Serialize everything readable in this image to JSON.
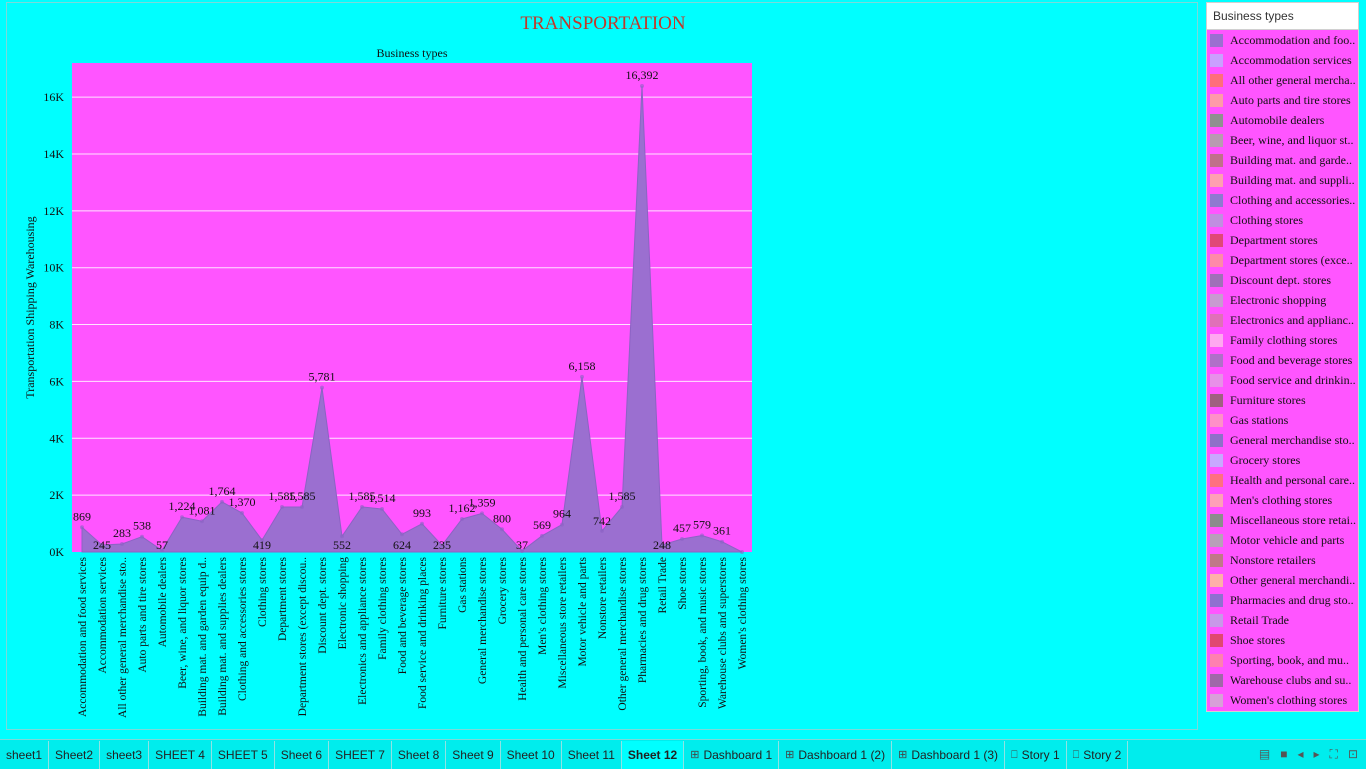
{
  "chart_data": {
    "type": "area",
    "title": "TRANSPORTATION",
    "subtitle": "Business types",
    "ylabel": "Transportation Shipping Warehousing",
    "ylim": [
      0,
      17200
    ],
    "yticks": [
      0,
      2000,
      4000,
      6000,
      8000,
      10000,
      12000,
      14000,
      16000
    ],
    "ytick_labels": [
      "0K",
      "2K",
      "4K",
      "6K",
      "8K",
      "10K",
      "12K",
      "14K",
      "16K"
    ],
    "grid": true,
    "categories": [
      "Accommodation and food services",
      "Accommodation services",
      "All other general merchandise sto..",
      "Auto parts and tire stores",
      "Automobile dealers",
      "Beer, wine, and liquor stores",
      "Building mat. and garden equip d..",
      "Building mat. and supplies dealers",
      "Clothing and accessories stores",
      "Clothing stores",
      "Department stores",
      "Department stores (except discou..",
      "Discount dept. stores",
      "Electronic shopping",
      "Electronics and appliance stores",
      "Family clothing stores",
      "Food and beverage stores",
      "Food service and drinking places",
      "Furniture stores",
      "Gas stations",
      "General merchandise stores",
      "Grocery stores",
      "Health and personal care stores",
      "Men's clothing stores",
      "Miscellaneous store retailers",
      "Motor vehicle and parts",
      "Nonstore retailers",
      "Other general merchandise stores",
      "Pharmacies and drug stores",
      "Retail Trade",
      "Shoe stores",
      "Sporting, book, and music stores",
      "Warehouse clubs and superstores",
      "Women's clothing stores"
    ],
    "values": [
      869,
      245,
      283,
      538,
      57,
      1224,
      1081,
      1764,
      1370,
      419,
      1585,
      1585,
      5781,
      552,
      1585,
      1514,
      624,
      993,
      235,
      1162,
      1359,
      800,
      37,
      569,
      964,
      6158,
      742,
      1585,
      16392,
      248,
      457,
      579,
      361,
      0
    ],
    "data_labels": [
      "869",
      "245",
      "283",
      "538",
      "57",
      "1,224",
      "1,081",
      "1,764",
      "1,370",
      "419",
      "1,585",
      "1,585",
      "5,781",
      "552",
      "1,585",
      "1,514",
      "624",
      "993",
      "235",
      "1,162",
      "1,359",
      "800",
      "37",
      "569",
      "964",
      "6,158",
      "742",
      "1,585",
      "16,392",
      "248",
      "457",
      "579",
      "361",
      ""
    ],
    "colors": {
      "background": "#00ffff",
      "plot_background": "#ff55ff",
      "area_fill": "#9b6fd0",
      "area_stroke": "#8c63c4",
      "title": "#c0392b"
    }
  },
  "legend": {
    "title": "Business types",
    "items": [
      {
        "label": "Accommodation and foo..",
        "color": "#9b6fd0"
      },
      {
        "label": "Accommodation services",
        "color": "#c9a0ff"
      },
      {
        "label": "All other general mercha..",
        "color": "#ff6e7a"
      },
      {
        "label": "Auto parts and tire stores",
        "color": "#ff9aa8"
      },
      {
        "label": "Automobile dealers",
        "color": "#909090"
      },
      {
        "label": "Beer, wine, and liquor st..",
        "color": "#b89ab0"
      },
      {
        "label": "Building mat. and garde..",
        "color": "#c0708a"
      },
      {
        "label": "Building mat. and suppli..",
        "color": "#ffa0b0"
      },
      {
        "label": "Clothing and accessories..",
        "color": "#8e7ad0"
      },
      {
        "label": "Clothing stores",
        "color": "#c08ee0"
      },
      {
        "label": "Department stores",
        "color": "#e04878"
      },
      {
        "label": "Department stores (exce..",
        "color": "#ff8aa8"
      },
      {
        "label": "Discount dept. stores",
        "color": "#a070b8"
      },
      {
        "label": "Electronic shopping",
        "color": "#c89ad0"
      },
      {
        "label": "Electronics and applianc..",
        "color": "#e070b8"
      },
      {
        "label": "Family clothing stores",
        "color": "#ffa8f0"
      },
      {
        "label": "Food and beverage stores",
        "color": "#b070c8"
      },
      {
        "label": "Food service and drinkin..",
        "color": "#e890e8"
      },
      {
        "label": "Furniture stores",
        "color": "#a06080"
      },
      {
        "label": "Gas stations",
        "color": "#ff90c8"
      },
      {
        "label": "General merchandise sto..",
        "color": "#8e70c8"
      },
      {
        "label": "Grocery stores",
        "color": "#c8a8ff"
      },
      {
        "label": "Health and personal care..",
        "color": "#ff7080"
      },
      {
        "label": "Men's clothing stores",
        "color": "#ffa0b8"
      },
      {
        "label": "Miscellaneous store retai..",
        "color": "#8c8c8c"
      },
      {
        "label": "Motor vehicle and parts",
        "color": "#b8a0b8"
      },
      {
        "label": "Nonstore retailers",
        "color": "#c07888"
      },
      {
        "label": "Other general merchandi..",
        "color": "#ffb0a8"
      },
      {
        "label": "Pharmacies and drug sto..",
        "color": "#9070d0"
      },
      {
        "label": "Retail Trade",
        "color": "#c898e8"
      },
      {
        "label": "Shoe stores",
        "color": "#e04870"
      },
      {
        "label": "Sporting, book, and  mu..",
        "color": "#ff80b0"
      },
      {
        "label": "Warehouse clubs and su..",
        "color": "#a068a8"
      },
      {
        "label": "Women's clothing stores",
        "color": "#d8a0d8"
      }
    ]
  },
  "tabs": [
    {
      "label": "sheet1",
      "icon": "",
      "active": false
    },
    {
      "label": "Sheet2",
      "icon": "",
      "active": false
    },
    {
      "label": "sheet3",
      "icon": "",
      "active": false
    },
    {
      "label": "SHEET 4",
      "icon": "",
      "active": false
    },
    {
      "label": "SHEET 5",
      "icon": "",
      "active": false
    },
    {
      "label": "Sheet 6",
      "icon": "",
      "active": false
    },
    {
      "label": "SHEET 7",
      "icon": "",
      "active": false
    },
    {
      "label": "Sheet 8",
      "icon": "",
      "active": false
    },
    {
      "label": "Sheet 9",
      "icon": "",
      "active": false
    },
    {
      "label": "Sheet 10",
      "icon": "",
      "active": false
    },
    {
      "label": "Sheet 11",
      "icon": "",
      "active": false
    },
    {
      "label": "Sheet 12",
      "icon": "",
      "active": true
    },
    {
      "label": "Dashboard 1",
      "icon": "dashboard-icon",
      "active": false
    },
    {
      "label": "Dashboard 1 (2)",
      "icon": "dashboard-icon",
      "active": false
    },
    {
      "label": "Dashboard 1 (3)",
      "icon": "dashboard-icon",
      "active": false
    },
    {
      "label": "Story 1",
      "icon": "story-icon",
      "active": false
    },
    {
      "label": "Story 2",
      "icon": "story-icon",
      "active": false
    }
  ],
  "tab_controls": [
    {
      "name": "filmstrip-view-icon",
      "glyph": "▤"
    },
    {
      "name": "show-tabs-icon",
      "glyph": "■"
    },
    {
      "name": "previous-sheet-icon",
      "glyph": "◂"
    },
    {
      "name": "next-sheet-icon",
      "glyph": "▸"
    },
    {
      "name": "fit-screen-icon",
      "glyph": "⛶"
    },
    {
      "name": "presentation-mode-icon",
      "glyph": "⊡"
    }
  ]
}
